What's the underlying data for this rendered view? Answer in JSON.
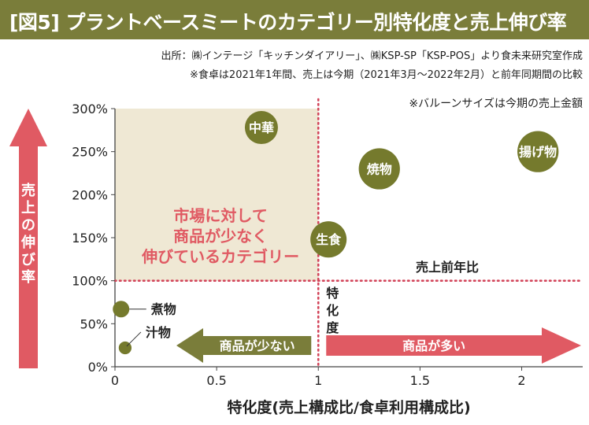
{
  "header": {
    "title": "[図5] プラントベースミートのカテゴリー別特化度と売上伸び率",
    "source_line1": "出所：㈱インテージ「キッチンダイアリー」、㈱KSP-SP「KSP-POS」より食未来研究室作成",
    "source_line2": "※食卓は2021年1年間、売上は今期（2021年3月～2022年2月）と前年同期間の比較"
  },
  "colors": {
    "brand_olive": "#7a7d3a",
    "bubble": "#757a2d",
    "highlight_red": "#e05a63",
    "quadrant_fill": "#efe8d4",
    "dotted_red": "#d2455a"
  },
  "chart_data": {
    "type": "bubble",
    "xlabel": "特化度(売上構成比/食卓利用構成比)",
    "ylabel": "売上の伸び率",
    "xlim": [
      0,
      2.3
    ],
    "ylim": [
      0,
      300
    ],
    "x_ticks": [
      0,
      0.5,
      1,
      1.5,
      2
    ],
    "x_tick_labels": [
      "0",
      "0.5",
      "1",
      "1.5",
      "2"
    ],
    "y_ticks": [
      0,
      50,
      100,
      150,
      200,
      250,
      300
    ],
    "y_tick_labels": [
      "0%",
      "50%",
      "100%",
      "150%",
      "200%",
      "250%",
      "300%"
    ],
    "reference_lines": {
      "x": 1,
      "y": 100
    },
    "reference_labels": {
      "y_line": "売上前年比",
      "x_line": "特化度"
    },
    "bubble_note": "※バルーンサイズは今期の売上金額",
    "quadrant_note": "市場に対して商品が少なく伸びているカテゴリー",
    "quadrant_note_lines": [
      "市場に対して",
      "商品が少なく",
      "伸びているカテゴリー"
    ],
    "arrow_left_label": "商品が少ない",
    "arrow_right_label": "商品が多い",
    "points": [
      {
        "name": "中華",
        "x": 0.72,
        "y": 278,
        "size": 1.0
      },
      {
        "name": "焼物",
        "x": 1.3,
        "y": 230,
        "size": 1.55
      },
      {
        "name": "揚げ物",
        "x": 2.08,
        "y": 250,
        "size": 1.55
      },
      {
        "name": "生食",
        "x": 1.05,
        "y": 148,
        "size": 1.2
      },
      {
        "name": "煮物",
        "x": 0.03,
        "y": 67,
        "size": 0.25
      },
      {
        "name": "汁物",
        "x": 0.05,
        "y": 22,
        "size": 0.15
      }
    ]
  }
}
